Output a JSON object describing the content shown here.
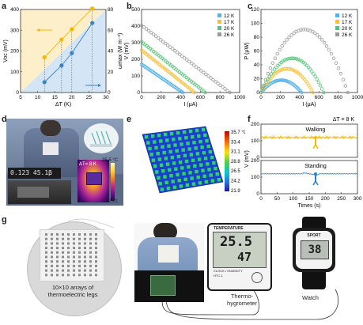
{
  "panels": {
    "a": {
      "letter": "a"
    },
    "b": {
      "letter": "b"
    },
    "c": {
      "letter": "c"
    },
    "d": {
      "letter": "d"
    },
    "e": {
      "letter": "e"
    },
    "f": {
      "letter": "f"
    },
    "g": {
      "letter": "g"
    }
  },
  "chart_data": [
    {
      "id": "a",
      "type": "scatter",
      "xlabel": "ΔT (K)",
      "ylabel_left": "Voc (mV)",
      "ylabel_right": "ωmax (W m⁻²)",
      "xlim": [
        5,
        30
      ],
      "ylim": [
        0,
        400
      ],
      "ylim_right": [
        0,
        80
      ],
      "xticks": [
        5,
        10,
        15,
        20,
        25,
        30
      ],
      "yticks": [
        0,
        100,
        200,
        300,
        400
      ],
      "yticks_right": [
        0,
        20,
        40,
        60,
        80
      ],
      "series": [
        {
          "axis": "left",
          "color": "#f5b800",
          "x": [
            12,
            17,
            20,
            26
          ],
          "y": [
            170,
            255,
            305,
            405
          ]
        },
        {
          "axis": "right",
          "color": "#3b82c4",
          "x": [
            12,
            17,
            20,
            26
          ],
          "y": [
            10,
            26,
            38,
            67
          ]
        }
      ]
    },
    {
      "id": "b",
      "type": "scatter",
      "xlabel": "I (μA)",
      "ylabel": "V (mV)",
      "xlim": [
        0,
        1000
      ],
      "ylim": [
        0,
        500
      ],
      "xticks": [
        0,
        200,
        400,
        600,
        800,
        1000
      ],
      "yticks": [
        0,
        100,
        200,
        300,
        400,
        500
      ],
      "legend": [
        "12 K",
        "17 K",
        "20 K",
        "26 K"
      ],
      "colors": [
        "#55b4ea",
        "#f6c13a",
        "#56c27a",
        "#9a9a9a"
      ],
      "series": [
        {
          "name": "12 K",
          "v0": 170,
          "imax": 420
        },
        {
          "name": "17 K",
          "v0": 255,
          "imax": 540
        },
        {
          "name": "20 K",
          "v0": 305,
          "imax": 650
        },
        {
          "name": "26 K",
          "v0": 405,
          "imax": 900
        }
      ]
    },
    {
      "id": "c",
      "type": "scatter",
      "xlabel": "I (μA)",
      "ylabel": "P (μW)",
      "xlim": [
        0,
        1000
      ],
      "ylim": [
        0,
        120
      ],
      "xticks": [
        0,
        200,
        400,
        600,
        800,
        1000
      ],
      "yticks": [
        0,
        20,
        40,
        60,
        80,
        100,
        120
      ],
      "legend": [
        "12 K",
        "17 K",
        "20 K",
        "26 K"
      ],
      "colors": [
        "#55b4ea",
        "#f6c13a",
        "#56c27a",
        "#9a9a9a"
      ]
    },
    {
      "id": "f",
      "type": "line",
      "xlabel": "Times (s)",
      "ylabel": "V (mV)",
      "annotation": "ΔT = 8 K",
      "xlim": [
        0,
        300
      ],
      "xticks": [
        0,
        50,
        100,
        150,
        200,
        250,
        300
      ],
      "top": {
        "label": "Walking",
        "yticks": [
          0,
          100,
          200
        ],
        "baseline": 120
      },
      "bottom": {
        "label": "Standing",
        "yticks": [
          0,
          100,
          200
        ],
        "baseline": 120
      }
    }
  ],
  "panel_d": {
    "ticks_top": "35.5 °C",
    "ticks_bottom": "25.2",
    "delta": "ΔT= 8 K",
    "display_text": "0.123 45.1β"
  },
  "panel_e": {
    "scale": [
      "35.7 °C",
      "33.4",
      "31.1",
      "28.8",
      "26.5",
      "24.2",
      "21.9"
    ]
  },
  "panel_g": {
    "caption_line1": "10×10 arrays of",
    "caption_line2": "thermoelectric legs",
    "thermo_label_1": "Thermo-",
    "thermo_label_2": "hygrometer",
    "watch_label": "Watch",
    "device_header": "TEMPERATURE",
    "device_value_1": "25.5",
    "device_value_2": "47",
    "device_clock_label": "CLOCK • HUMIDITY",
    "device_model": "HTC-1",
    "watch_brand": "SPORT",
    "watch_time": "38"
  }
}
